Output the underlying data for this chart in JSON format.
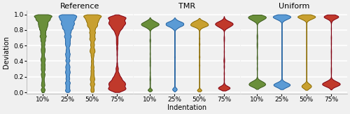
{
  "subplot_titles": [
    "Reference",
    "TMR",
    "Uniform"
  ],
  "indentations": [
    "10%",
    "25%",
    "50%",
    "75%"
  ],
  "colors": [
    "#6a8f3a",
    "#5b9bd5",
    "#c8a030",
    "#c0392b"
  ],
  "edge_colors": [
    "#3a5a1a",
    "#2060a0",
    "#8a6a00",
    "#800010"
  ],
  "ylim": [
    0.0,
    1.0
  ],
  "yticks": [
    0.0,
    0.2,
    0.4,
    0.6,
    0.8,
    1.0
  ],
  "ylabel": "Deviation",
  "xlabel": "Indentation",
  "background_color": "#f0f0f0",
  "grid_color": "#ffffff",
  "title_fontsize": 8,
  "label_fontsize": 7,
  "tick_fontsize": 6.5,
  "violin_bw": 0.04
}
